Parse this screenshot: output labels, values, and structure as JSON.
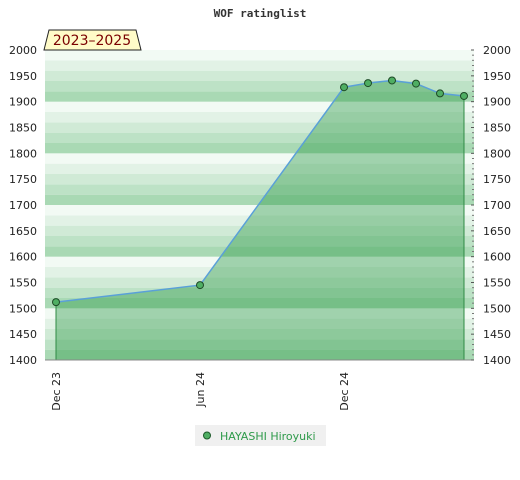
{
  "chart_data": {
    "type": "line",
    "title": "WOF ratinglist",
    "period_badge": "2023–2025",
    "x_ticks": [
      "Dec 23",
      "Jun 24",
      "Dec 24"
    ],
    "ylim": [
      1400,
      2000
    ],
    "y_ticks": [
      1400,
      1450,
      1500,
      1550,
      1600,
      1650,
      1700,
      1750,
      1800,
      1850,
      1900,
      1950,
      2000
    ],
    "grid": false,
    "legend_placement": "bottom-center",
    "series": [
      {
        "name": "HAYASHI Hiroyuki",
        "x": [
          "2023-12",
          "2024-06",
          "2024-12",
          "2025-01",
          "2025-02",
          "2025-03",
          "2025-04",
          "2025-05"
        ],
        "values": [
          1512,
          1545,
          1928,
          1936,
          1941,
          1935,
          1916,
          1911
        ]
      }
    ],
    "colors": {
      "line": "#5aa0d8",
      "fill": "#2f9a4a",
      "marker": "#4fae63",
      "badge_bg": "#fffbc8",
      "band_dark": "#a9d9b4",
      "band_light": "#eef8f0"
    }
  }
}
